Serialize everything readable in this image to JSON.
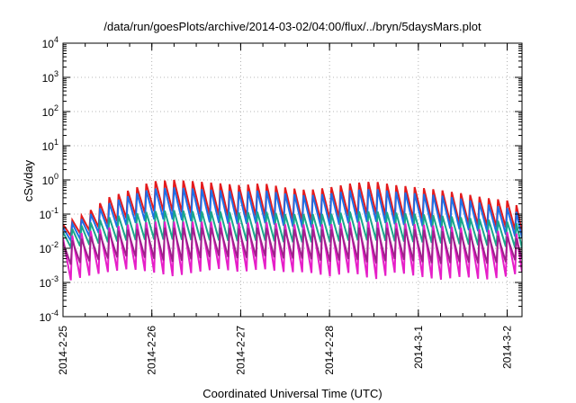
{
  "chart_data": {
    "type": "line",
    "title": "/data/run/goesPlots/archive/2014-03-02/04:00/flux/../bryn/5daysMars.plot",
    "xlabel": "Coordinated Universal Time (UTC)",
    "ylabel": "cSv/day",
    "y_scale": "log",
    "xlim": [
      "2014-02-25T00:00",
      "2014-03-02T04:00"
    ],
    "ylim": [
      0.0001,
      10000
    ],
    "grid": true,
    "legend": "none",
    "x_ticks": [
      "2014-2-25",
      "2014-2-26",
      "2014-2-27",
      "2014-2-28",
      "2014-3-1",
      "2014-3-2"
    ],
    "y_ticks": [
      {
        "value": 0.0001,
        "base": "10",
        "exp": "-4"
      },
      {
        "value": 0.001,
        "base": "10",
        "exp": "-3"
      },
      {
        "value": 0.01,
        "base": "10",
        "exp": "-2"
      },
      {
        "value": 0.1,
        "base": "10",
        "exp": "-1"
      },
      {
        "value": 1,
        "base": "10",
        "exp": "0"
      },
      {
        "value": 10,
        "base": "10",
        "exp": "1"
      },
      {
        "value": 100,
        "base": "10",
        "exp": "2"
      },
      {
        "value": 1000,
        "base": "10",
        "exp": "3"
      },
      {
        "value": 10000,
        "base": "10",
        "exp": "4"
      }
    ],
    "sawtooth": {
      "period_hours": 2.5,
      "start": "2014-02-25T00:00",
      "peak_times": [
        "2014-02-25T00:00",
        "2014-02-25T06:00",
        "2014-02-25T12:00",
        "2014-02-25T18:00",
        "2014-02-26T00:00",
        "2014-02-26T06:00",
        "2014-02-26T12:00",
        "2014-02-26T18:00",
        "2014-02-27T00:00",
        "2014-02-27T06:00",
        "2014-02-27T12:00",
        "2014-02-27T18:00",
        "2014-02-28T00:00",
        "2014-02-28T06:00",
        "2014-02-28T12:00",
        "2014-02-28T18:00",
        "2014-03-01T00:00",
        "2014-03-01T06:00",
        "2014-03-01T12:00",
        "2014-03-01T18:00",
        "2014-03-02T00:00",
        "2014-03-02T04:00"
      ]
    },
    "series": [
      {
        "color": "#e41a1c",
        "peak_envelope": [
          0.05,
          0.1,
          0.3,
          0.5,
          0.9,
          1.0,
          0.9,
          0.8,
          0.7,
          0.8,
          0.6,
          0.5,
          0.6,
          0.8,
          0.9,
          0.7,
          0.6,
          0.5,
          0.4,
          0.3,
          0.25,
          0.15
        ],
        "trough_envelope": [
          0.02,
          0.03,
          0.05,
          0.08,
          0.12,
          0.12,
          0.1,
          0.09,
          0.08,
          0.09,
          0.07,
          0.06,
          0.07,
          0.09,
          0.1,
          0.08,
          0.07,
          0.06,
          0.05,
          0.045,
          0.04,
          0.03
        ]
      },
      {
        "color": "#1e6fe6",
        "peak_envelope": [
          0.04,
          0.08,
          0.2,
          0.35,
          0.55,
          0.6,
          0.55,
          0.5,
          0.45,
          0.5,
          0.4,
          0.35,
          0.4,
          0.5,
          0.55,
          0.45,
          0.4,
          0.35,
          0.28,
          0.2,
          0.15,
          0.1
        ],
        "trough_envelope": [
          0.015,
          0.02,
          0.035,
          0.05,
          0.07,
          0.07,
          0.06,
          0.055,
          0.05,
          0.055,
          0.045,
          0.04,
          0.045,
          0.055,
          0.06,
          0.05,
          0.045,
          0.04,
          0.035,
          0.03,
          0.025,
          0.02
        ]
      },
      {
        "color": "#1aa68a",
        "peak_envelope": [
          0.03,
          0.05,
          0.08,
          0.1,
          0.12,
          0.13,
          0.12,
          0.12,
          0.11,
          0.12,
          0.1,
          0.1,
          0.1,
          0.12,
          0.12,
          0.11,
          0.1,
          0.09,
          0.08,
          0.07,
          0.06,
          0.05
        ],
        "trough_envelope": [
          0.01,
          0.012,
          0.015,
          0.017,
          0.018,
          0.018,
          0.017,
          0.017,
          0.016,
          0.017,
          0.015,
          0.015,
          0.015,
          0.017,
          0.017,
          0.016,
          0.015,
          0.014,
          0.013,
          0.012,
          0.011,
          0.01
        ]
      },
      {
        "color": "#e61ec8",
        "peak_envelope": [
          0.02,
          0.03,
          0.04,
          0.05,
          0.06,
          0.06,
          0.06,
          0.06,
          0.055,
          0.06,
          0.05,
          0.05,
          0.05,
          0.06,
          0.06,
          0.055,
          0.05,
          0.045,
          0.04,
          0.035,
          0.03,
          0.025
        ],
        "trough_envelope": [
          0.001,
          0.0015,
          0.002,
          0.0025,
          0.002,
          0.0015,
          0.002,
          0.0025,
          0.002,
          0.0025,
          0.002,
          0.002,
          0.0015,
          0.002,
          0.0012,
          0.002,
          0.0015,
          0.0012,
          0.0015,
          0.0012,
          0.0015,
          0.002
        ]
      },
      {
        "color": "#a0208c",
        "peak_envelope": [
          0.015,
          0.02,
          0.03,
          0.035,
          0.04,
          0.04,
          0.04,
          0.04,
          0.038,
          0.04,
          0.035,
          0.035,
          0.035,
          0.04,
          0.04,
          0.038,
          0.035,
          0.032,
          0.028,
          0.025,
          0.022,
          0.018
        ],
        "trough_envelope": [
          0.003,
          0.004,
          0.005,
          0.006,
          0.005,
          0.004,
          0.005,
          0.006,
          0.005,
          0.006,
          0.005,
          0.005,
          0.004,
          0.005,
          0.0035,
          0.005,
          0.004,
          0.0035,
          0.004,
          0.0035,
          0.004,
          0.005
        ]
      }
    ]
  }
}
